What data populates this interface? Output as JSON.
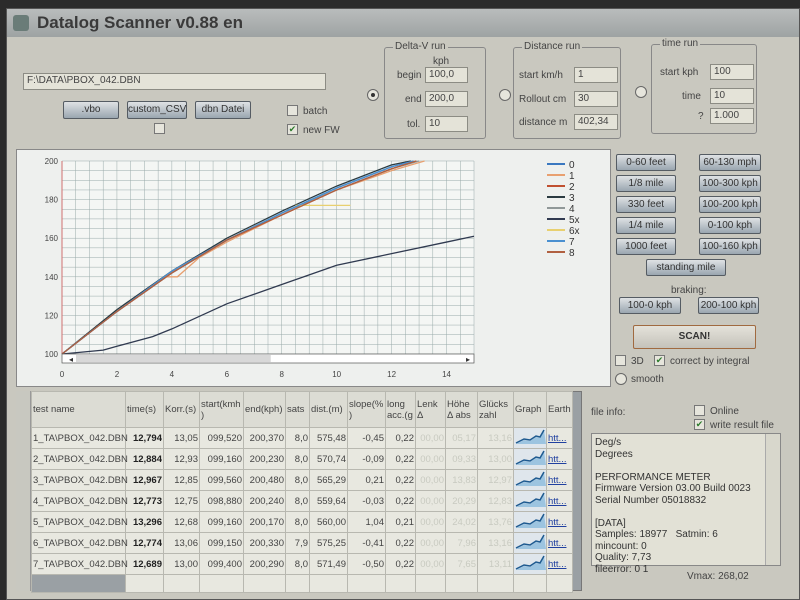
{
  "window": {
    "title": "Datalog Scanner v0.88 en"
  },
  "file": {
    "path": "F:\\DATA\\PBOX_042.DBN",
    "buttons": [
      ".vbo",
      "custom_CSV",
      "dbn Datei"
    ],
    "batch_label": "batch",
    "batch_checked": false,
    "newfw_label": "new FW",
    "newfw_checked": true,
    "extra_checked": false
  },
  "deltav": {
    "title": "Delta-V run",
    "unit": "kph",
    "begin_label": "begin",
    "begin": "100,0",
    "end_label": "end",
    "end": "200,0",
    "tol_label": "tol.",
    "tol": "10",
    "selected": true
  },
  "distance": {
    "title": "Distance run",
    "start_label": "start km/h",
    "start": "1",
    "rollout_label": "Rollout cm",
    "rollout": "30",
    "distance_label": "distance m",
    "distance": "402,34",
    "selected": false
  },
  "timerun": {
    "title": "time run",
    "start_label": "start kph",
    "start": "100",
    "time_label": "time",
    "time": "10",
    "q_label": "?",
    "q": "1.000",
    "selected": false
  },
  "presets": {
    "left": [
      "0-60 feet",
      "1/8 mile",
      "330 feet",
      "1/4 mile",
      "1000 feet"
    ],
    "right": [
      "60-130 mph",
      "100-300 kph",
      "100-200 kph",
      "0-100 kph",
      "100-160 kph"
    ],
    "standing": "standing mile",
    "braking_label": "braking:",
    "braking": [
      "100-0 kph",
      "200-100 kph"
    ],
    "scan": "SCAN!"
  },
  "options": {
    "3d_label": "3D",
    "3d": false,
    "integral_label": "correct by integral",
    "integral": true,
    "smooth_label": "smooth",
    "smooth": false
  },
  "chart_data": {
    "type": "line",
    "xlim": [
      0,
      15
    ],
    "ylim": [
      100,
      200
    ],
    "xticks": [
      "0",
      "2",
      "4",
      "6",
      "8",
      "10",
      "12",
      "14"
    ],
    "yticks": [
      "100",
      "120",
      "140",
      "160",
      "180",
      "200"
    ],
    "grid": true,
    "legend_placement": "right",
    "series": [
      {
        "name": "0",
        "color": "#3a78c0",
        "x": [
          0,
          2,
          4,
          6,
          8,
          10,
          12,
          12.8
        ],
        "y": [
          100,
          122,
          142,
          159,
          173,
          186,
          197,
          200
        ]
      },
      {
        "name": "1",
        "color": "#e8a070",
        "x": [
          0,
          2,
          3.8,
          4.2,
          5,
          6,
          8,
          10,
          12,
          13.2
        ],
        "y": [
          100,
          122,
          140,
          140,
          150,
          158,
          172,
          185,
          195,
          200
        ]
      },
      {
        "name": "2",
        "color": "#c05030",
        "x": [
          0,
          2,
          4,
          6,
          8,
          10,
          12,
          12.9
        ],
        "y": [
          100,
          122,
          142,
          159,
          172,
          185,
          196,
          200
        ]
      },
      {
        "name": "3",
        "color": "#2a3a40",
        "x": [
          0,
          2,
          4,
          6,
          8,
          10,
          12,
          12.7
        ],
        "y": [
          100,
          123,
          143,
          160,
          174,
          187,
          198,
          200
        ]
      },
      {
        "name": "4",
        "color": "#909898",
        "x": [
          0,
          2,
          4,
          6,
          8,
          10,
          12,
          13.0
        ],
        "y": [
          100,
          122,
          142,
          159,
          173,
          185,
          196,
          200
        ]
      },
      {
        "name": "5x",
        "color": "#303a50",
        "x": [
          0,
          1.5,
          2,
          3.3,
          4,
          6,
          8,
          10,
          12,
          14,
          15
        ],
        "y": [
          100,
          102,
          104,
          109,
          113,
          126,
          136,
          146,
          152,
          158,
          161
        ]
      },
      {
        "name": "6x",
        "color": "#e8d070",
        "x": [
          8.5,
          10.5
        ],
        "y": [
          177,
          177
        ]
      },
      {
        "name": "7",
        "color": "#4a90d0",
        "x": [
          0,
          2,
          4,
          6,
          8,
          10,
          12,
          12.8
        ],
        "y": [
          100,
          122,
          143,
          159,
          173,
          186,
          197,
          200
        ]
      },
      {
        "name": "8",
        "color": "#b06040",
        "x": [
          0,
          2,
          4,
          6,
          8,
          10,
          12,
          12.9
        ],
        "y": [
          100,
          122,
          142,
          159,
          172,
          185,
          196,
          200
        ]
      }
    ]
  },
  "table": {
    "columns": [
      "test name",
      "time(s)",
      "Korr.(s)",
      "start(kmh)",
      "end(kph)",
      "sats",
      "dist.(m)",
      "slope(%)",
      "long acc.(g",
      "Lenk Δ",
      "Höhe Δ abs",
      "Glückszahl",
      "Graph",
      "Earth"
    ],
    "rows": [
      [
        "1_TA\\PBOX_042.DBN",
        "12,794",
        "13,05",
        "099,520",
        "200,370",
        "8,0",
        "575,48",
        "-0,45",
        "0,22",
        "00,00",
        "05,17",
        "13,16",
        "",
        "htt..."
      ],
      [
        "2_TA\\PBOX_042.DBN",
        "12,884",
        "12,93",
        "099,160",
        "200,230",
        "8,0",
        "570,74",
        "-0,09",
        "0,22",
        "00,00",
        "09,33",
        "13,00",
        "",
        "htt..."
      ],
      [
        "3_TA\\PBOX_042.DBN",
        "12,967",
        "12,85",
        "099,560",
        "200,480",
        "8,0",
        "565,29",
        "0,21",
        "0,22",
        "00,00",
        "13,83",
        "12,97",
        "",
        "htt..."
      ],
      [
        "4_TA\\PBOX_042.DBN",
        "12,773",
        "12,75",
        "098,880",
        "200,240",
        "8,0",
        "559,64",
        "-0,03",
        "0,22",
        "00,00",
        "20,29",
        "12,83",
        "",
        "htt..."
      ],
      [
        "5_TA\\PBOX_042.DBN",
        "13,296",
        "12,68",
        "099,160",
        "200,170",
        "8,0",
        "560,00",
        "1,04",
        "0,21",
        "00,00",
        "24,02",
        "13,76",
        "",
        "htt..."
      ],
      [
        "6_TA\\PBOX_042.DBN",
        "12,774",
        "13,06",
        "099,150",
        "200,330",
        "7,9",
        "575,25",
        "-0,41",
        "0,22",
        "00,00",
        "7,96",
        "13,16",
        "",
        "htt..."
      ],
      [
        "7_TA\\PBOX_042.DBN",
        "12,689",
        "13,00",
        "099,400",
        "200,290",
        "8,0",
        "571,49",
        "-0,50",
        "0,22",
        "00,00",
        "7,65",
        "13,11",
        "",
        "htt..."
      ]
    ]
  },
  "info": {
    "label": "file info:",
    "online_label": "Online",
    "online": false,
    "write_label": "write result file",
    "write": true,
    "text": "Deg/s\nDegrees\n\nPERFORMANCE METER\nFirmware Version 03.00 Build 0023\nSerial Number 05018832\n\n[DATA]\nSamples: 18977   Satmin: 6\nmincount: 0\nQuality: 7,73\nfileerror: 0 1",
    "vmax": "Vmax: 268,02"
  }
}
